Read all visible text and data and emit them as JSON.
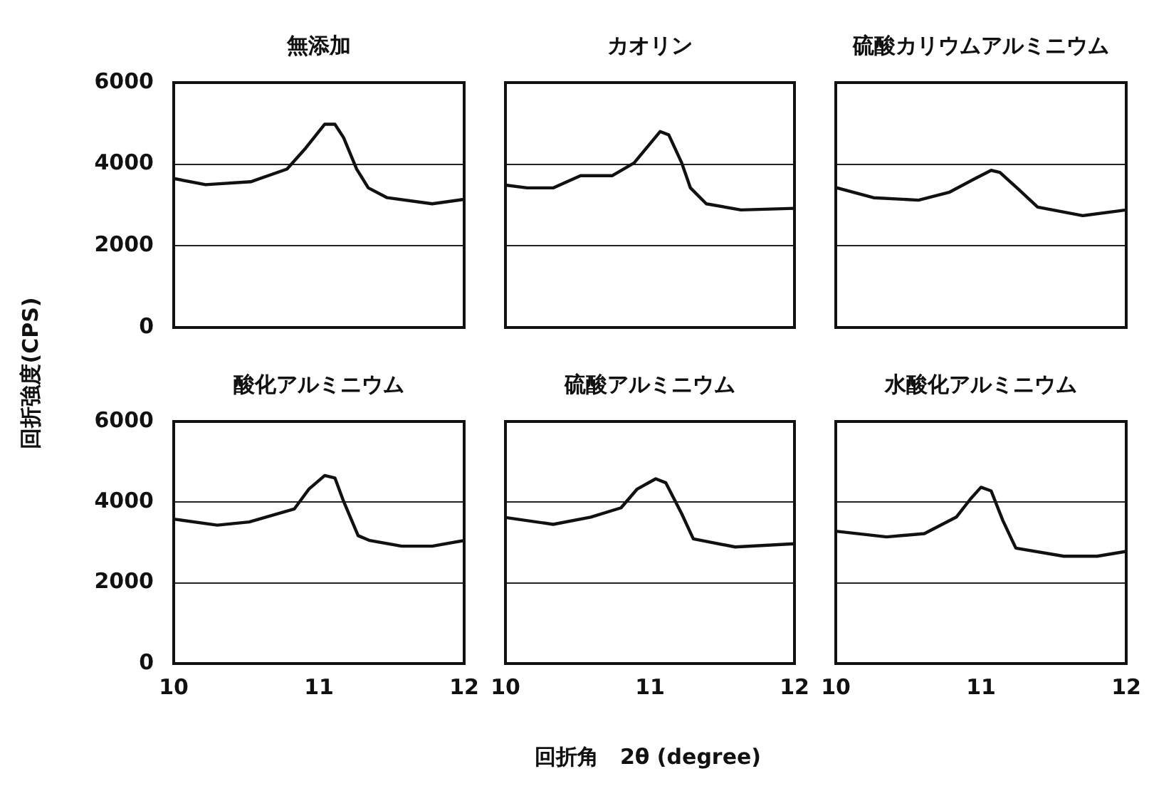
{
  "chart_data": [
    {
      "type": "line",
      "title": "無添加",
      "ylabel": "回折強度(CPS)",
      "xlim": [
        10,
        12
      ],
      "xticks": [
        10,
        11,
        12
      ],
      "ylim": [
        0,
        6000
      ],
      "yticks": [
        0,
        2000,
        4000,
        6000
      ],
      "grid": "y",
      "tick_labels": "y",
      "series": [
        {
          "color": "#111111",
          "x": [
            10,
            10.22,
            10.53,
            10.78,
            10.91,
            11.04,
            11.11,
            11.17,
            11.26,
            11.34,
            11.47,
            11.78,
            12
          ],
          "values": [
            3650,
            3500,
            3570,
            3880,
            4400,
            4980,
            4980,
            4650,
            3880,
            3420,
            3180,
            3030,
            3140
          ]
        }
      ]
    },
    {
      "type": "line",
      "title": "カオリン",
      "xlim": [
        10,
        12
      ],
      "xticks": [
        10,
        11,
        12
      ],
      "ylim": [
        0,
        6000
      ],
      "yticks": [
        0,
        2000,
        4000,
        6000
      ],
      "grid": "y",
      "tick_labels": false,
      "series": [
        {
          "color": "#111111",
          "x": [
            10,
            10.15,
            10.33,
            10.52,
            10.74,
            10.89,
            11.07,
            11.13,
            11.22,
            11.28,
            11.39,
            11.63,
            12
          ],
          "values": [
            3490,
            3420,
            3420,
            3720,
            3720,
            4030,
            4800,
            4720,
            4030,
            3420,
            3030,
            2880,
            2920
          ]
        }
      ]
    },
    {
      "type": "line",
      "title": "硫酸カリウムアルミニウム",
      "xlim": [
        10,
        12
      ],
      "xticks": [
        10,
        11,
        12
      ],
      "ylim": [
        0,
        6000
      ],
      "yticks": [
        0,
        2000,
        4000,
        6000
      ],
      "grid": "y",
      "tick_labels": false,
      "series": [
        {
          "color": "#111111",
          "x": [
            10,
            10.26,
            10.57,
            10.78,
            10.96,
            11.07,
            11.13,
            11.26,
            11.39,
            11.7,
            12
          ],
          "values": [
            3430,
            3180,
            3120,
            3310,
            3650,
            3850,
            3800,
            3380,
            2950,
            2740,
            2880
          ]
        }
      ]
    },
    {
      "type": "line",
      "title": "酸化アルミニウム",
      "xlim": [
        10,
        12
      ],
      "xticks": [
        10,
        11,
        12
      ],
      "ylim": [
        0,
        6000
      ],
      "yticks": [
        0,
        2000,
        4000,
        6000
      ],
      "grid": "y",
      "series": [
        {
          "color": "#111111",
          "x": [
            10,
            10.3,
            10.52,
            10.83,
            10.93,
            11.04,
            11.11,
            11.17,
            11.27,
            11.35,
            11.57,
            11.78,
            12
          ],
          "values": [
            3580,
            3430,
            3510,
            3830,
            4320,
            4660,
            4600,
            4020,
            3170,
            3050,
            2910,
            2910,
            3050
          ]
        }
      ]
    },
    {
      "type": "line",
      "title": "硫酸アルミニウム",
      "xlabel": "回折角　2θ (degree)",
      "xlim": [
        10,
        12
      ],
      "xticks": [
        10,
        11,
        12
      ],
      "ylim": [
        0,
        6000
      ],
      "yticks": [
        0,
        2000,
        4000,
        6000
      ],
      "grid": "y",
      "tick_labels": "x",
      "series": [
        {
          "color": "#111111",
          "x": [
            10,
            10.33,
            10.59,
            10.8,
            10.91,
            11.04,
            11.11,
            11.22,
            11.3,
            11.59,
            12
          ],
          "values": [
            3620,
            3450,
            3630,
            3860,
            4320,
            4580,
            4480,
            3710,
            3090,
            2890,
            2970
          ]
        }
      ]
    },
    {
      "type": "line",
      "title": "水酸化アルミニウム",
      "xlim": [
        10,
        12
      ],
      "xticks": [
        10,
        11,
        12
      ],
      "ylim": [
        0,
        6000
      ],
      "yticks": [
        0,
        2000,
        4000,
        6000
      ],
      "grid": "y",
      "tick_labels": "x",
      "series": [
        {
          "color": "#111111",
          "x": [
            10,
            10.35,
            10.61,
            10.83,
            10.93,
            11,
            11.07,
            11.15,
            11.24,
            11.57,
            11.8,
            12
          ],
          "values": [
            3280,
            3140,
            3220,
            3630,
            4090,
            4370,
            4280,
            3550,
            2860,
            2660,
            2660,
            2780
          ]
        }
      ]
    }
  ]
}
